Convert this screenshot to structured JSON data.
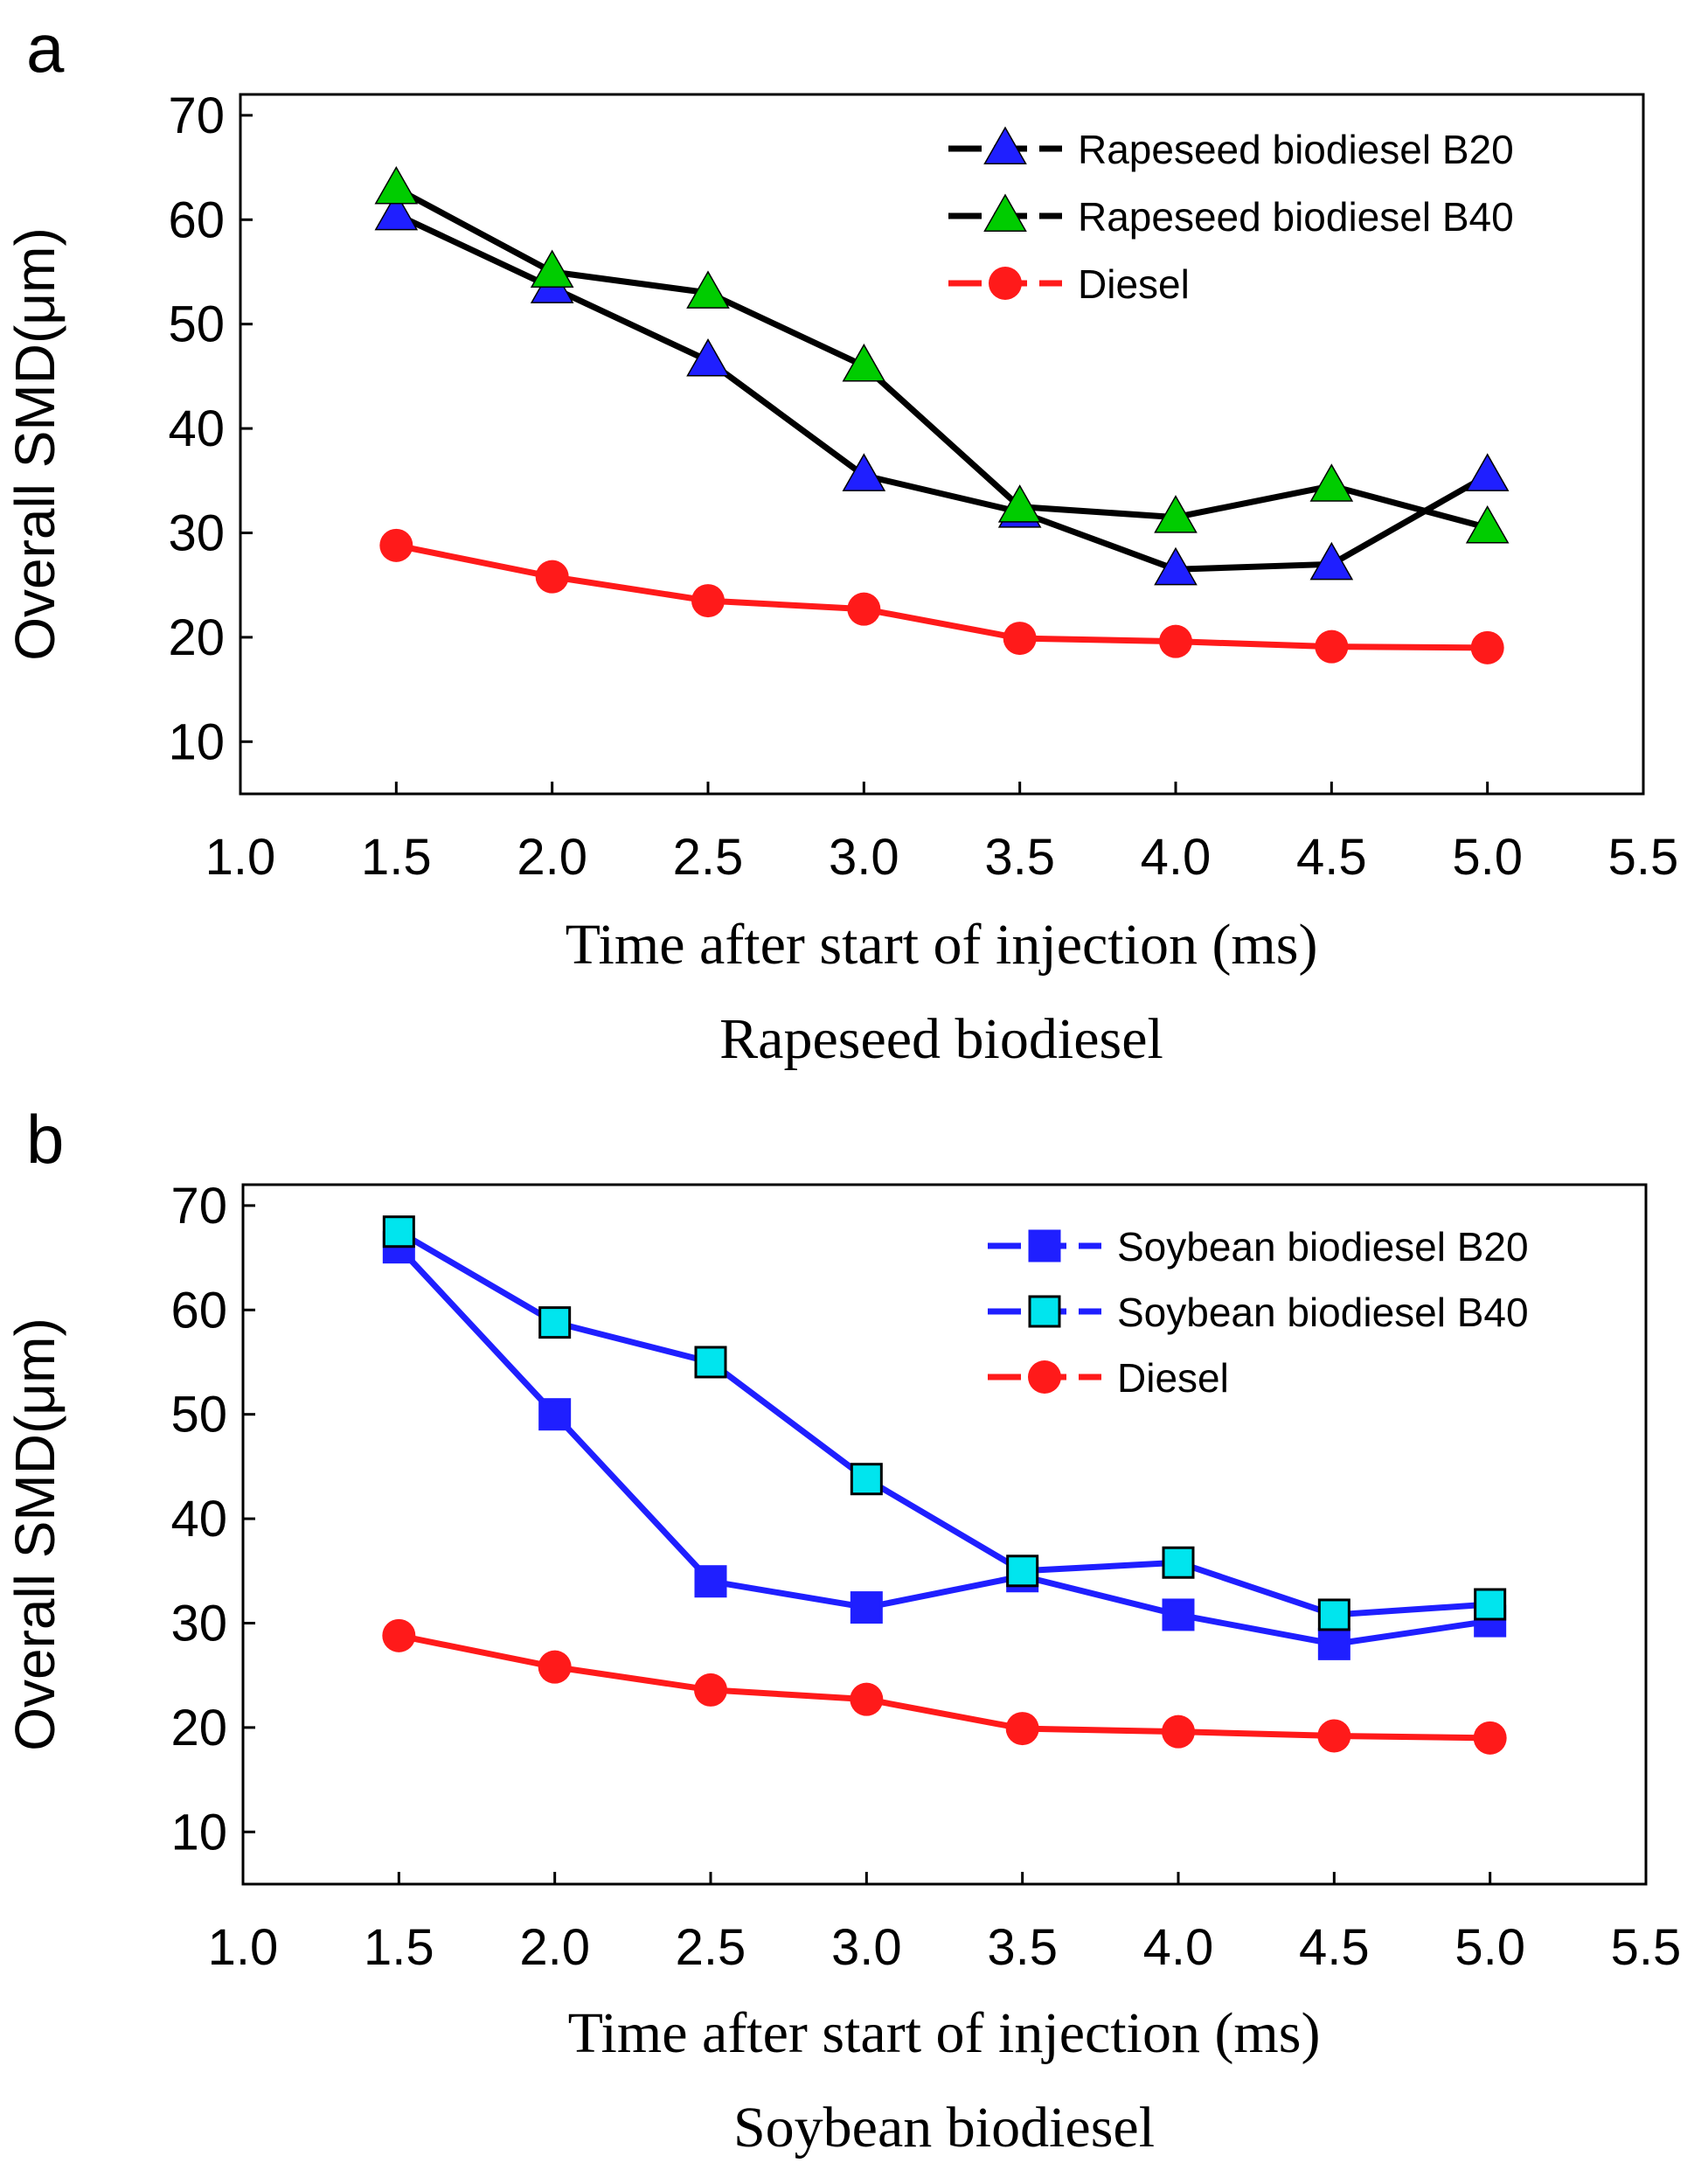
{
  "chart_data": [
    {
      "type": "line",
      "panel_label": "a",
      "title": "",
      "xlabel": "Time after start of injection (ms)",
      "subtitle": "Rapeseed biodiesel",
      "ylabel": "Overall SMD(μm)",
      "xlim": [
        1.0,
        5.5
      ],
      "ylim": [
        5,
        72
      ],
      "xticks": [
        "1.0",
        "1.5",
        "2.0",
        "2.5",
        "3.0",
        "3.5",
        "4.0",
        "4.5",
        "5.0",
        "5.5"
      ],
      "yticks": [
        "10",
        "20",
        "30",
        "40",
        "50",
        "60",
        "70"
      ],
      "grid": false,
      "legend_position": "top-right",
      "x": [
        1.5,
        2.0,
        2.5,
        3.0,
        3.5,
        4.0,
        4.5,
        5.0
      ],
      "series": [
        {
          "name": "Rapeseed biodiesel B20",
          "values": [
            60.5,
            53.5,
            46.5,
            35.5,
            32.0,
            26.5,
            27.0,
            35.5
          ],
          "line_color": "#000000",
          "marker": "triangle",
          "marker_color": "#1f1fff"
        },
        {
          "name": "Rapeseed biodiesel B40",
          "values": [
            63.0,
            55.0,
            53.0,
            46.0,
            32.5,
            31.5,
            34.5,
            30.5
          ],
          "line_color": "#000000",
          "marker": "triangle",
          "marker_color": "#00cc00"
        },
        {
          "name": "Diesel",
          "values": [
            28.8,
            25.8,
            23.5,
            22.7,
            19.9,
            19.6,
            19.1,
            19.0
          ],
          "line_color": "#ff1a1a",
          "marker": "circle",
          "marker_color": "#ff1a1a"
        }
      ]
    },
    {
      "type": "line",
      "panel_label": "b",
      "title": "",
      "xlabel": "Time after start of injection (ms)",
      "subtitle": "Soybean biodiesel",
      "ylabel": "Overall SMD(μm)",
      "xlim": [
        1.0,
        5.5
      ],
      "ylim": [
        5,
        72
      ],
      "xticks": [
        "1.0",
        "1.5",
        "2.0",
        "2.5",
        "3.0",
        "3.5",
        "4.0",
        "4.5",
        "5.0",
        "5.5"
      ],
      "yticks": [
        "10",
        "20",
        "30",
        "40",
        "50",
        "60",
        "70"
      ],
      "grid": false,
      "legend_position": "top-right",
      "x": [
        1.5,
        2.0,
        2.5,
        3.0,
        3.5,
        4.0,
        4.5,
        5.0
      ],
      "series": [
        {
          "name": "Soybean biodiesel B20",
          "values": [
            66.0,
            50.0,
            34.0,
            31.5,
            34.5,
            30.8,
            28.0,
            30.2
          ],
          "line_color": "#1f1fff",
          "marker": "square",
          "marker_color": "#1f1fff"
        },
        {
          "name": "Soybean biodiesel B40",
          "values": [
            67.5,
            58.8,
            55.0,
            43.8,
            35.0,
            35.8,
            30.8,
            31.8
          ],
          "line_color": "#1f1fff",
          "marker": "square",
          "marker_color": "#00e5ee"
        },
        {
          "name": "Diesel",
          "values": [
            28.8,
            25.8,
            23.6,
            22.7,
            19.9,
            19.6,
            19.2,
            19.0
          ],
          "line_color": "#ff1a1a",
          "marker": "circle",
          "marker_color": "#ff1a1a"
        }
      ]
    }
  ]
}
